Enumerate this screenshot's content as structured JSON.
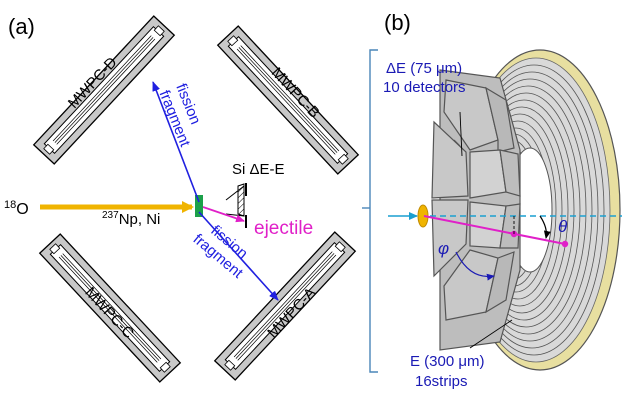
{
  "panel_a": {
    "label": "(a)",
    "detectors": {
      "mwpc_d": "MWPC-D",
      "mwpc_b": "MWPC-B",
      "mwpc_c": "MWPC-C",
      "mwpc_a": "MWPC-A"
    },
    "beam": {
      "mass_number": "18",
      "element": "O",
      "color": "#f0b400"
    },
    "target": {
      "mass_number": "237",
      "text": "Np, Ni",
      "color": "#1ca04a"
    },
    "si_label": "Si ΔE-E",
    "ejectile": {
      "label": "ejectile",
      "color": "#e020c8"
    },
    "fragment_upper": {
      "line1": "fission",
      "line2": "fragment"
    },
    "fragment_lower": {
      "line1": "fission",
      "line2": "fragment"
    },
    "fragment_color": "#2020e0"
  },
  "panel_b": {
    "label": "(b)",
    "delta_e": {
      "line1": "ΔE (75 μm)",
      "line2": "10 detectors"
    },
    "e_detector": {
      "line1": "E (300 μm)",
      "line2": "16strips"
    },
    "theta": "θ",
    "phi": "φ",
    "text_color": "#1a1ab4",
    "bracket_color": "#4a86b8"
  }
}
